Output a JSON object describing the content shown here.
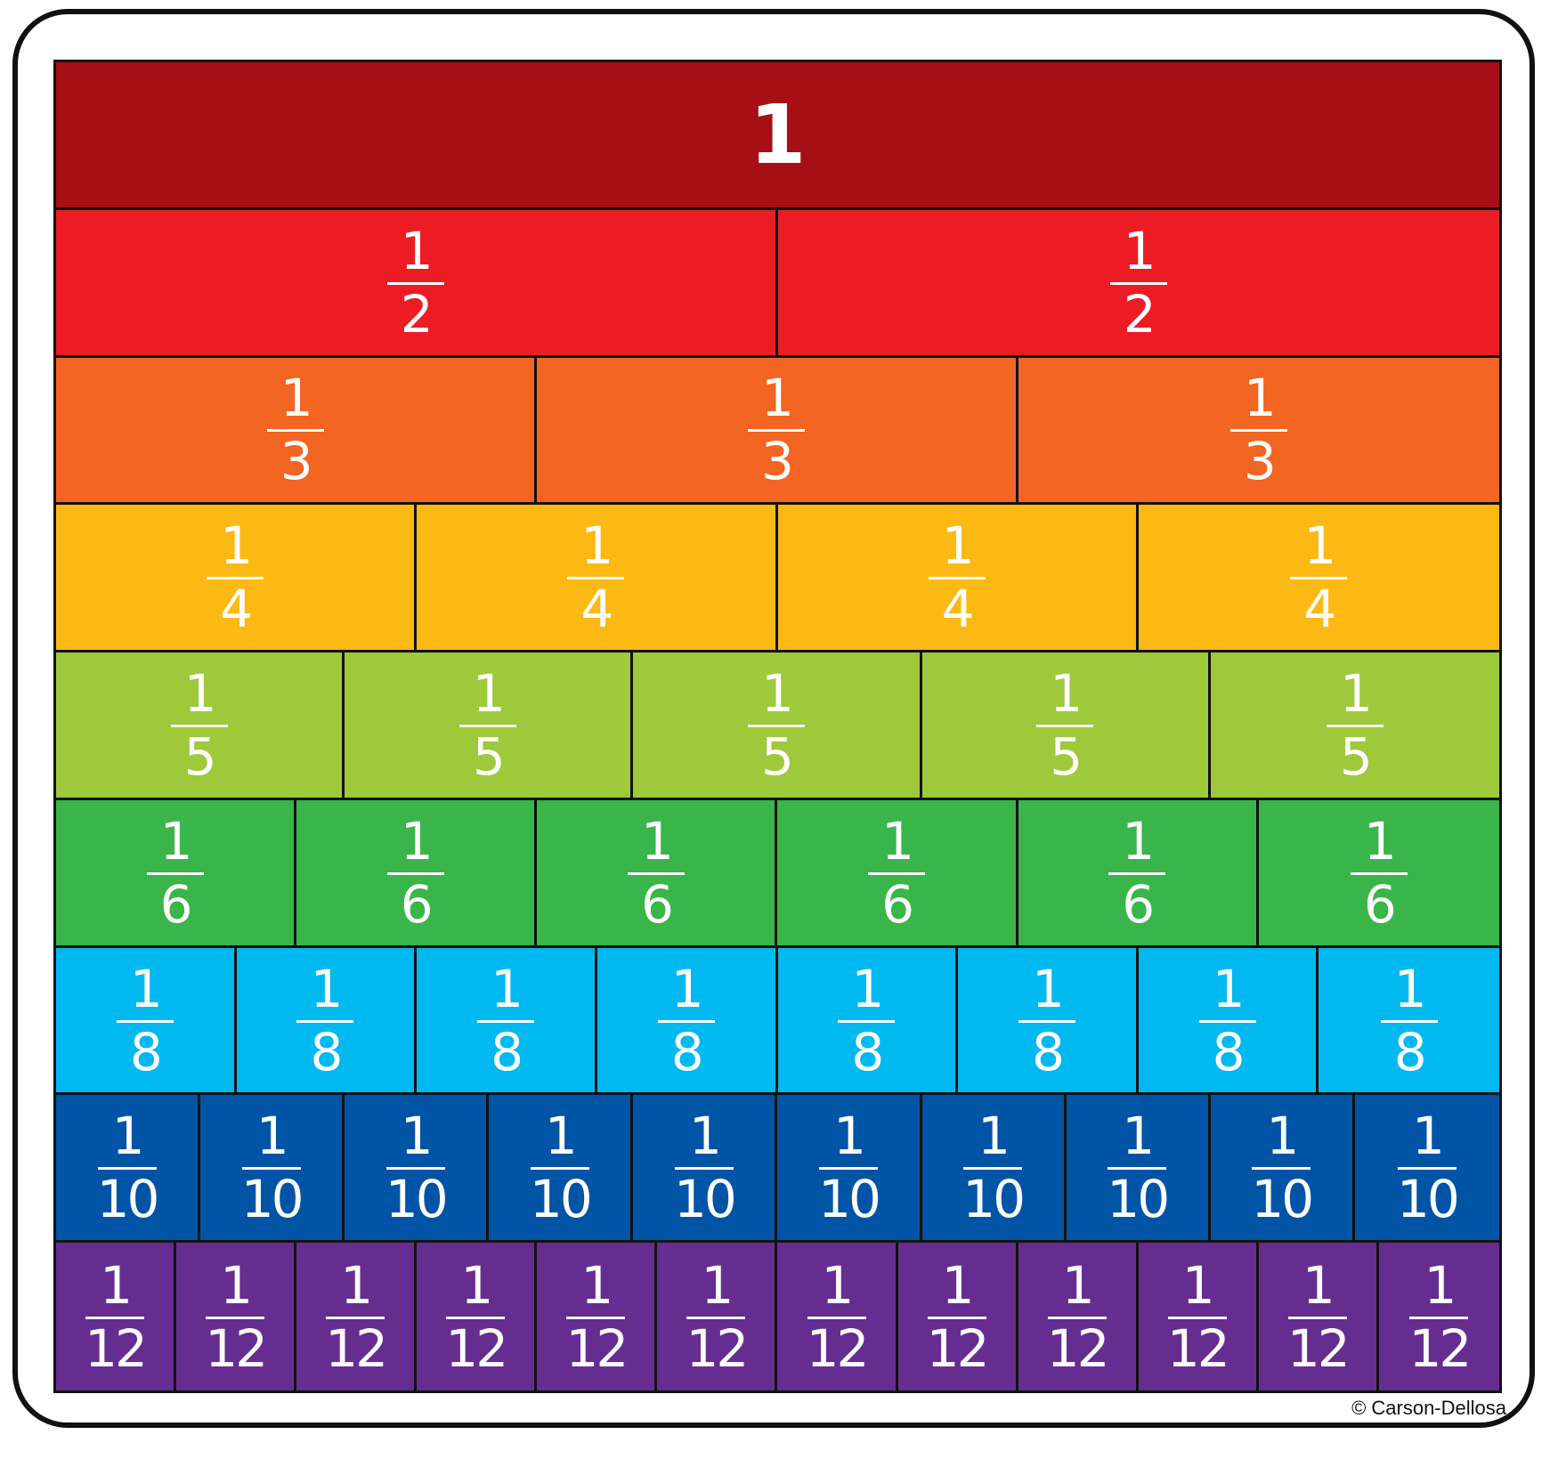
{
  "strips": [
    {
      "parts": 1,
      "label_whole": "1",
      "color": "#a50f15"
    },
    {
      "parts": 2,
      "numerator": "1",
      "denominator": "2",
      "color": "#ed1c24"
    },
    {
      "parts": 3,
      "numerator": "1",
      "denominator": "3",
      "color": "#f26522"
    },
    {
      "parts": 4,
      "numerator": "1",
      "denominator": "4",
      "color": "#fdb913"
    },
    {
      "parts": 5,
      "numerator": "1",
      "denominator": "5",
      "color": "#9dc93b"
    },
    {
      "parts": 6,
      "numerator": "1",
      "denominator": "6",
      "color": "#39b54a"
    },
    {
      "parts": 8,
      "numerator": "1",
      "denominator": "8",
      "color": "#00b9f1"
    },
    {
      "parts": 10,
      "numerator": "1",
      "denominator": "10",
      "color": "#0054a6"
    },
    {
      "parts": 12,
      "numerator": "1",
      "denominator": "12",
      "color": "#662d91"
    }
  ],
  "copyright": "© Carson-Dellosa"
}
